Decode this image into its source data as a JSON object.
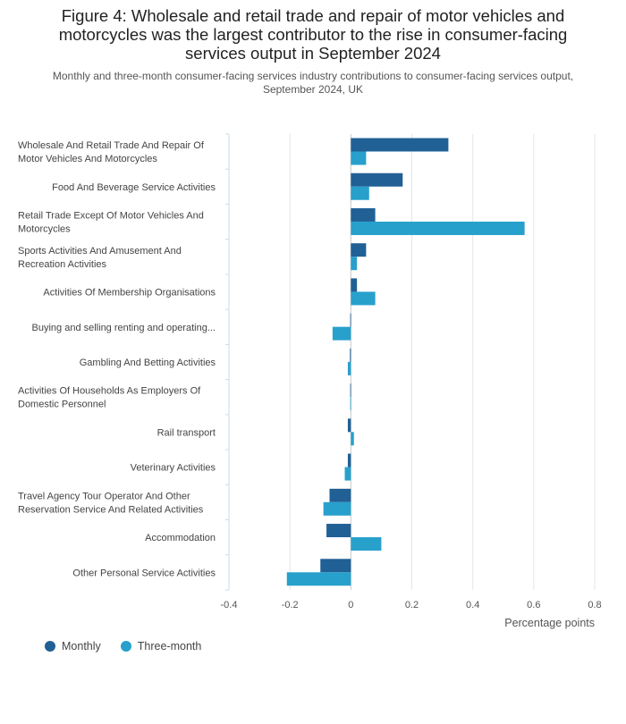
{
  "header": {
    "title": "Figure 4: Wholesale and retail trade and repair of motor vehicles and motorcycles was the largest contributor to the rise in consumer-facing services output in September 2024",
    "subtitle": "Monthly and three-month consumer-facing services industry contributions to consumer-facing services output, September 2024, UK"
  },
  "colors": {
    "monthly": "#206095",
    "three_month": "#27a0cc",
    "grid": "#e6e6e6",
    "axis_tick": "#c8dce8"
  },
  "chart_data": {
    "type": "bar",
    "orientation": "horizontal",
    "title": "Figure 4: Wholesale and retail trade and repair of motor vehicles and motorcycles was the largest contributor to the rise in consumer-facing services output in September 2024",
    "subtitle": "Monthly and three-month consumer-facing services industry contributions to consumer-facing services output, September 2024, UK",
    "xlabel": "Percentage points",
    "ylabel": "",
    "xlim": [
      -0.4,
      0.8
    ],
    "xticks": [
      -0.4,
      -0.2,
      0,
      0.2,
      0.4,
      0.6,
      0.8
    ],
    "xtick_labels": [
      "-0.4",
      "-0.2",
      "0",
      "0.2",
      "0.4",
      "0.6",
      "0.8"
    ],
    "grid": true,
    "legend_position": "bottom-left",
    "categories": [
      "Wholesale And Retail Trade And Repair Of Motor Vehicles And Motorcycles",
      "Food And Beverage Service Activities",
      "Retail Trade Except Of Motor Vehicles And Motorcycles",
      "Sports Activities And Amusement And Recreation Activities",
      "Activities Of Membership Organisations",
      "Buying and selling renting and operating...",
      "Gambling And Betting Activities",
      "Activities Of Households As Employers Of Domestic Personnel",
      "Rail transport",
      "Veterinary Activities",
      "Travel Agency Tour Operator And Other Reservation Service And Related Activities",
      "Accommodation",
      "Other Personal Service Activities"
    ],
    "category_label_lines": [
      [
        "Wholesale And Retail Trade And Repair Of",
        "Motor Vehicles And Motorcycles"
      ],
      [
        "Food And Beverage Service Activities"
      ],
      [
        "Retail Trade Except Of Motor Vehicles And",
        "Motorcycles"
      ],
      [
        "Sports Activities And Amusement And",
        "Recreation Activities"
      ],
      [
        "Activities Of Membership Organisations"
      ],
      [
        "Buying and selling renting and operating..."
      ],
      [
        "Gambling And Betting Activities"
      ],
      [
        "Activities Of Households As Employers Of",
        "Domestic Personnel"
      ],
      [
        "Rail transport"
      ],
      [
        "Veterinary Activities"
      ],
      [
        "Travel Agency Tour Operator And Other",
        "Reservation Service And Related Activities"
      ],
      [
        "Accommodation"
      ],
      [
        "Other Personal Service Activities"
      ]
    ],
    "series": [
      {
        "name": "Monthly",
        "values": [
          0.32,
          0.17,
          0.08,
          0.05,
          0.02,
          -0.002,
          -0.003,
          -0.002,
          -0.01,
          -0.01,
          -0.07,
          -0.08,
          -0.1
        ]
      },
      {
        "name": "Three-month",
        "values": [
          0.05,
          0.06,
          0.57,
          0.02,
          0.08,
          -0.06,
          -0.01,
          -0.002,
          0.01,
          -0.02,
          -0.09,
          0.1,
          -0.21
        ]
      }
    ]
  }
}
